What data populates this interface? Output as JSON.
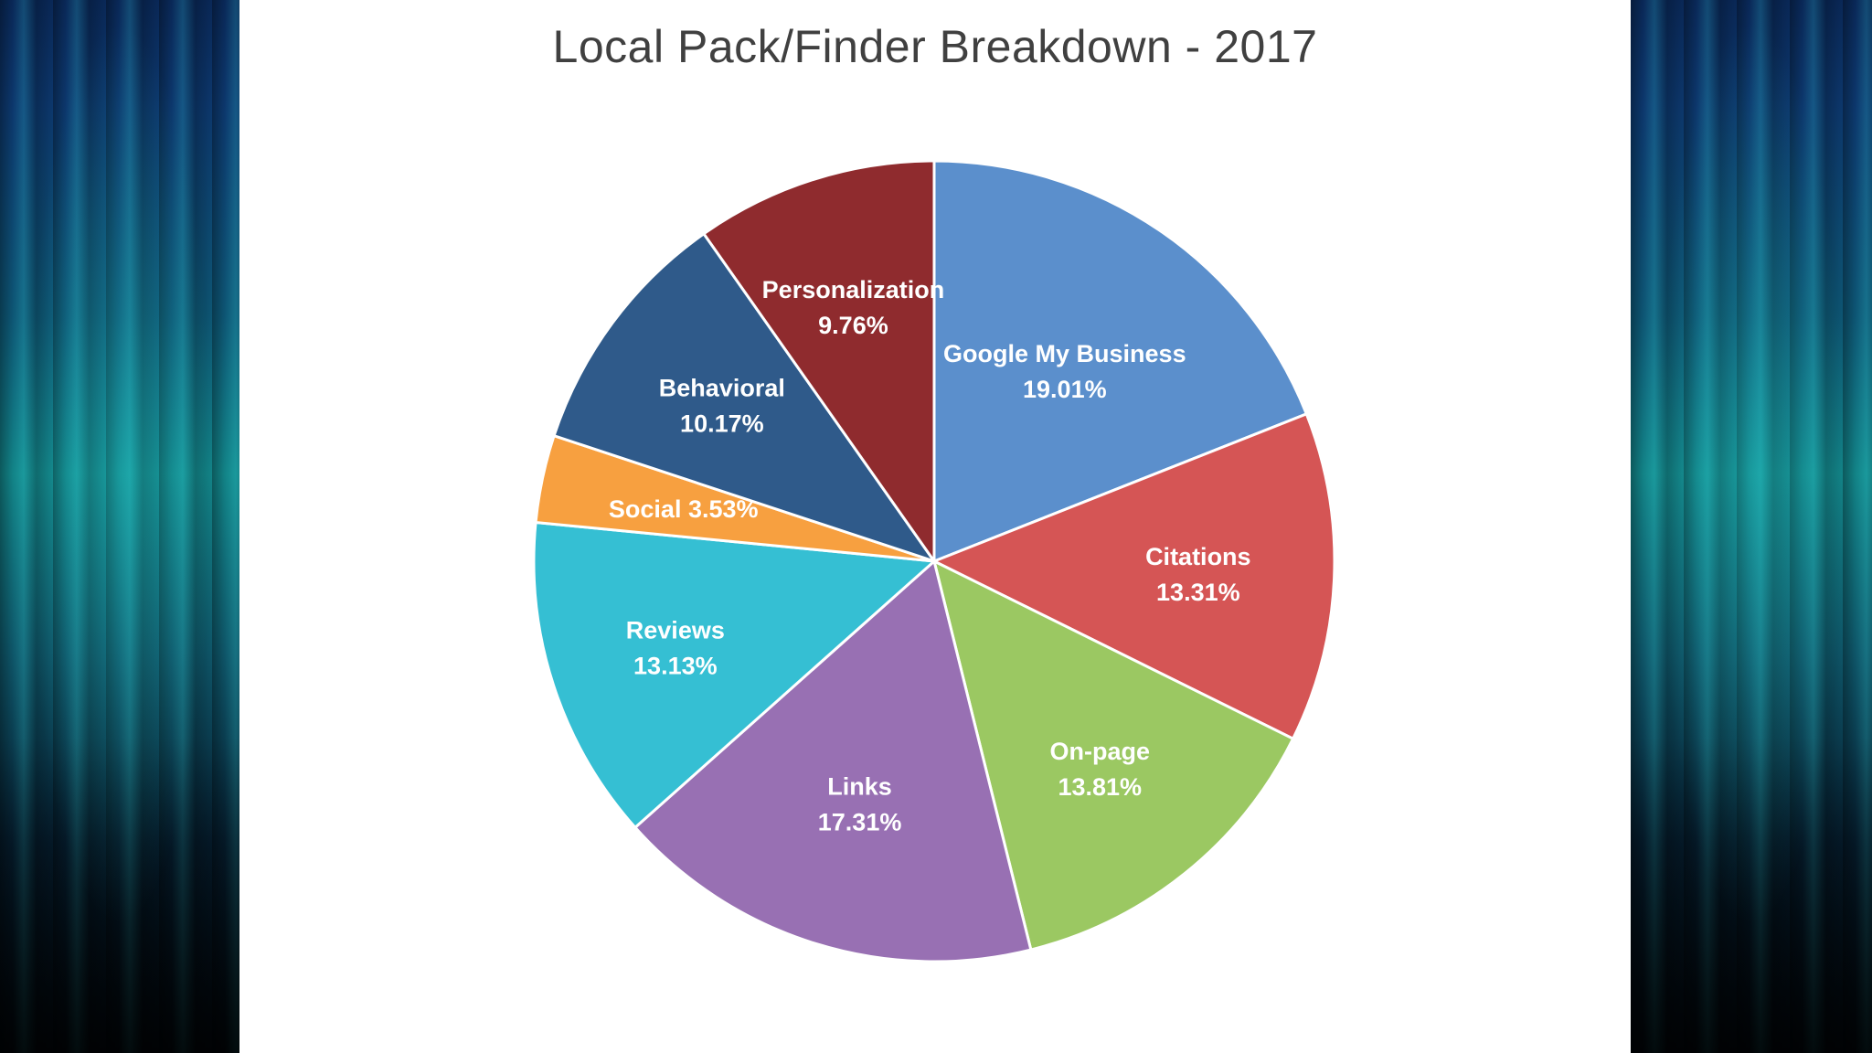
{
  "chart_data": {
    "type": "pie",
    "title": "Local Pack/Finder Breakdown - 2017",
    "slices": [
      {
        "label": "Google My Business",
        "value": 19.01,
        "value_label": "19.01%",
        "color": "#5b8fcc"
      },
      {
        "label": "Citations",
        "value": 13.31,
        "value_label": "13.31%",
        "color": "#d55555"
      },
      {
        "label": "On-page",
        "value": 13.81,
        "value_label": "13.81%",
        "color": "#9bc862"
      },
      {
        "label": "Links",
        "value": 17.31,
        "value_label": "17.31%",
        "color": "#9870b3"
      },
      {
        "label": "Reviews",
        "value": 13.13,
        "value_label": "13.13%",
        "color": "#35bfd3"
      },
      {
        "label": "Social",
        "value": 3.53,
        "value_label": "3.53%",
        "color": "#f7a040"
      },
      {
        "label": "Behavioral",
        "value": 10.17,
        "value_label": "10.17%",
        "color": "#2f5a8a"
      },
      {
        "label": "Personalization",
        "value": 9.76,
        "value_label": "9.76%",
        "color": "#8f2b2e"
      }
    ],
    "start_angle_deg": 0,
    "direction": "clockwise",
    "legend": "none",
    "data_labels": "inside"
  },
  "background": {
    "slide_color": "#ffffff",
    "side_panel_colors": [
      "#0a2a5c",
      "#138a8e",
      "#020a12"
    ]
  }
}
